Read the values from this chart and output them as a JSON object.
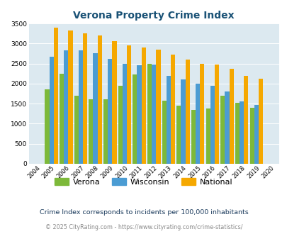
{
  "title": "Verona Property Crime Index",
  "years": [
    2004,
    2005,
    2006,
    2007,
    2008,
    2009,
    2010,
    2011,
    2012,
    2013,
    2014,
    2015,
    2016,
    2017,
    2018,
    2019,
    2020
  ],
  "verona": [
    0,
    1850,
    2250,
    1700,
    1600,
    1600,
    1950,
    2225,
    2500,
    1575,
    1450,
    1350,
    1375,
    1700,
    1525,
    1400,
    0
  ],
  "wisconsin": [
    0,
    2675,
    2825,
    2825,
    2750,
    2625,
    2500,
    2450,
    2475,
    2200,
    2100,
    2000,
    1950,
    1800,
    1550,
    1475,
    0
  ],
  "national": [
    0,
    3400,
    3325,
    3250,
    3200,
    3050,
    2950,
    2900,
    2850,
    2725,
    2600,
    2500,
    2475,
    2375,
    2200,
    2125,
    0
  ],
  "verona_color": "#7db93a",
  "wisconsin_color": "#4b9cd3",
  "national_color": "#f5a800",
  "bg_color": "#dce9f0",
  "title_color": "#1a5276",
  "subtitle": "Crime Index corresponds to incidents per 100,000 inhabitants",
  "footer": "© 2025 CityRating.com - https://www.cityrating.com/crime-statistics/",
  "ylim": [
    0,
    3500
  ],
  "yticks": [
    0,
    500,
    1000,
    1500,
    2000,
    2500,
    3000,
    3500
  ]
}
